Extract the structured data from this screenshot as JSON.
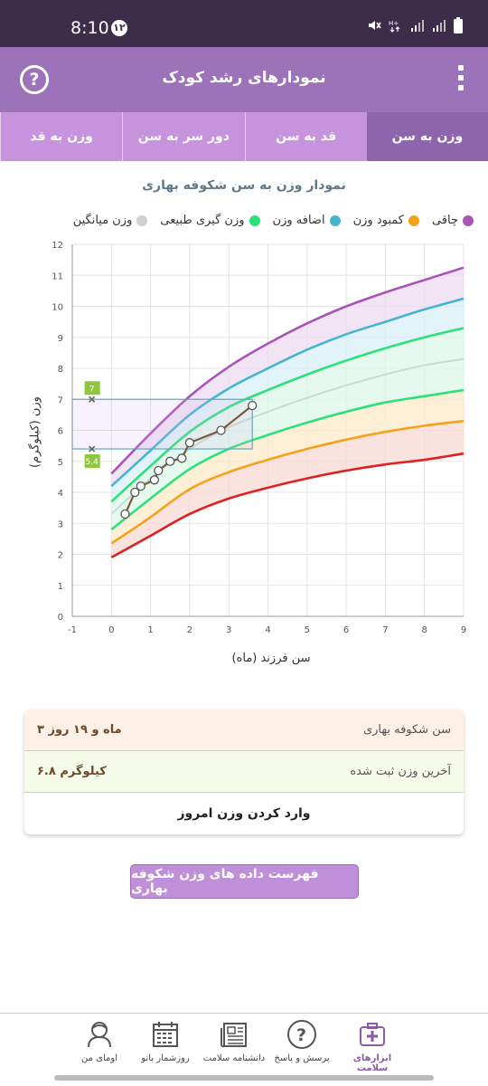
{
  "status": {
    "time": "8:10",
    "notif": "۱۲"
  },
  "appbar": {
    "title": "نمودارهای رشد کودک",
    "help_icon": "help-icon",
    "menu_icon": "more-vert-icon"
  },
  "tabs": [
    {
      "label": "وزن به سن",
      "active": true
    },
    {
      "label": "قد به سن",
      "active": false
    },
    {
      "label": "دور سر به سن",
      "active": false
    },
    {
      "label": "وزن به قد",
      "active": false
    }
  ],
  "chart_title": "نمودار وزن به سن شکوفه بهاری",
  "legend": [
    {
      "label": "چاقی",
      "color": "#a855b5"
    },
    {
      "label": "کمبود وزن",
      "color": "#f2a31b"
    },
    {
      "label": "اضافه وزن",
      "color": "#46b4cf"
    },
    {
      "label": "وزن گیری طبیعی",
      "color": "#2ce07a"
    },
    {
      "label": "وزن میانگین",
      "color": "#cfcfcf"
    }
  ],
  "chart_data": {
    "type": "line",
    "xlabel": "سن فرزند (ماه)",
    "ylabel": "وزن (کیلوگرم)",
    "xlim": [
      -1,
      9
    ],
    "ylim": [
      0,
      12
    ],
    "x_ticks": [
      "-1",
      "0",
      "1",
      "2",
      "3",
      "4",
      "5",
      "6",
      "7",
      "8",
      "9"
    ],
    "y_ticks": [
      "0",
      "1",
      "2",
      "3",
      "4",
      "5",
      "6",
      "7",
      "8",
      "9",
      "10",
      "11",
      "12"
    ],
    "x": [
      0,
      1,
      2,
      3,
      4,
      5,
      6,
      7,
      8,
      9
    ],
    "curves": [
      {
        "name": "obese",
        "color": "#a855b5",
        "fill": "#ecdcf2",
        "values": [
          4.6,
          5.9,
          7.1,
          8.05,
          8.8,
          9.45,
          10.0,
          10.45,
          10.85,
          11.25
        ]
      },
      {
        "name": "overweight",
        "color": "#46b4cf",
        "fill": "#d8eff7",
        "values": [
          4.2,
          5.35,
          6.5,
          7.35,
          8.0,
          8.6,
          9.1,
          9.5,
          9.9,
          10.25
        ]
      },
      {
        "name": "normal_upper",
        "color": "#2ce07a",
        "fill": "#dcf7e8",
        "values": [
          3.7,
          4.85,
          5.95,
          6.75,
          7.3,
          7.8,
          8.25,
          8.65,
          9.0,
          9.3
        ]
      },
      {
        "name": "average",
        "color": "#c9dbd1",
        "fill": "#dcf7e8",
        "values": [
          3.3,
          4.45,
          5.4,
          6.1,
          6.6,
          7.05,
          7.45,
          7.8,
          8.1,
          8.3
        ]
      },
      {
        "name": "normal_lower",
        "color": "#2ce07a",
        "fill": "#fdebc9",
        "values": [
          2.8,
          3.8,
          4.75,
          5.4,
          5.85,
          6.25,
          6.6,
          6.9,
          7.1,
          7.3
        ]
      },
      {
        "name": "underweight",
        "color": "#f2a31b",
        "fill": "#f8d9d3",
        "values": [
          2.35,
          3.2,
          4.1,
          4.65,
          5.05,
          5.4,
          5.7,
          5.95,
          6.15,
          6.3
        ]
      },
      {
        "name": "severe",
        "color": "#e02020",
        "fill": "",
        "values": [
          1.9,
          2.6,
          3.3,
          3.8,
          4.15,
          4.45,
          4.7,
          4.9,
          5.05,
          5.25
        ]
      }
    ],
    "child_series": {
      "color": "#7b5a3a",
      "points": [
        [
          0.35,
          3.3
        ],
        [
          0.6,
          4.0
        ],
        [
          0.75,
          4.2
        ],
        [
          1.1,
          4.4
        ],
        [
          1.2,
          4.7
        ],
        [
          1.5,
          5.0
        ],
        [
          1.8,
          5.1
        ],
        [
          2.0,
          5.6
        ],
        [
          2.8,
          6.0
        ],
        [
          3.6,
          6.8
        ]
      ]
    },
    "range_box": {
      "x": [
        -1,
        3.6
      ],
      "y": [
        5.4,
        7.0
      ],
      "labels": [
        "7",
        "5.4"
      ]
    }
  },
  "info": {
    "age_label": "سن شکوفه بهاری",
    "age_value": "۳ ماه و ۱۹ روز",
    "weight_label": "آخرین وزن ثبت شده",
    "weight_value": "۶.۸ کیلوگرم",
    "enter_weight": "وارد کردن وزن امروز"
  },
  "list_button": "فهرست داده های وزن شکوفه بهاری",
  "nav": [
    {
      "label": "ابزارهای سلامت",
      "icon": "medical-kit-icon",
      "active": true
    },
    {
      "label": "پرسش و پاسخ",
      "icon": "question-icon",
      "active": false
    },
    {
      "label": "دانشنامه سلامت",
      "icon": "newspaper-icon",
      "active": false
    },
    {
      "label": "روزشمار بانو",
      "icon": "calendar-icon",
      "active": false
    },
    {
      "label": "اومای من",
      "icon": "profile-icon",
      "active": false
    }
  ]
}
